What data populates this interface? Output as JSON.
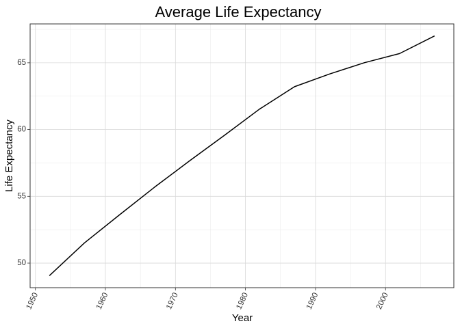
{
  "chart_data": {
    "type": "line",
    "title": "Average Life Expectancy",
    "xlabel": "Year",
    "ylabel": "Life Expectancy",
    "x": [
      1952,
      1957,
      1962,
      1967,
      1972,
      1977,
      1982,
      1987,
      1992,
      1997,
      2002,
      2007
    ],
    "series": [
      {
        "values": [
          49.06,
          51.51,
          53.61,
          55.68,
          57.65,
          59.57,
          61.53,
          63.21,
          64.16,
          65.01,
          65.69,
          67.01
        ]
      }
    ],
    "xlim": [
      1949.25,
      2009.75
    ],
    "ylim": [
      48.16,
      67.91
    ],
    "x_ticks": [
      1950,
      1960,
      1970,
      1980,
      1990,
      2000
    ],
    "x_minor_ticks": [
      1955,
      1965,
      1975,
      1985,
      1995,
      2005
    ],
    "y_ticks": [
      50,
      55,
      60,
      65
    ],
    "y_minor_ticks": [
      52.5,
      57.5,
      62.5,
      67.5
    ],
    "x_tick_labels": [
      "1950",
      "1960",
      "1970",
      "1980",
      "1990",
      "2000"
    ],
    "y_tick_labels": [
      "50",
      "55",
      "60",
      "65"
    ],
    "grid": true,
    "legend": "none",
    "colors": {
      "line": "#000000",
      "grid_major": "#d9d9d9",
      "grid_minor": "#ececec",
      "panel_border": "#333333",
      "background": "#ffffff"
    }
  }
}
